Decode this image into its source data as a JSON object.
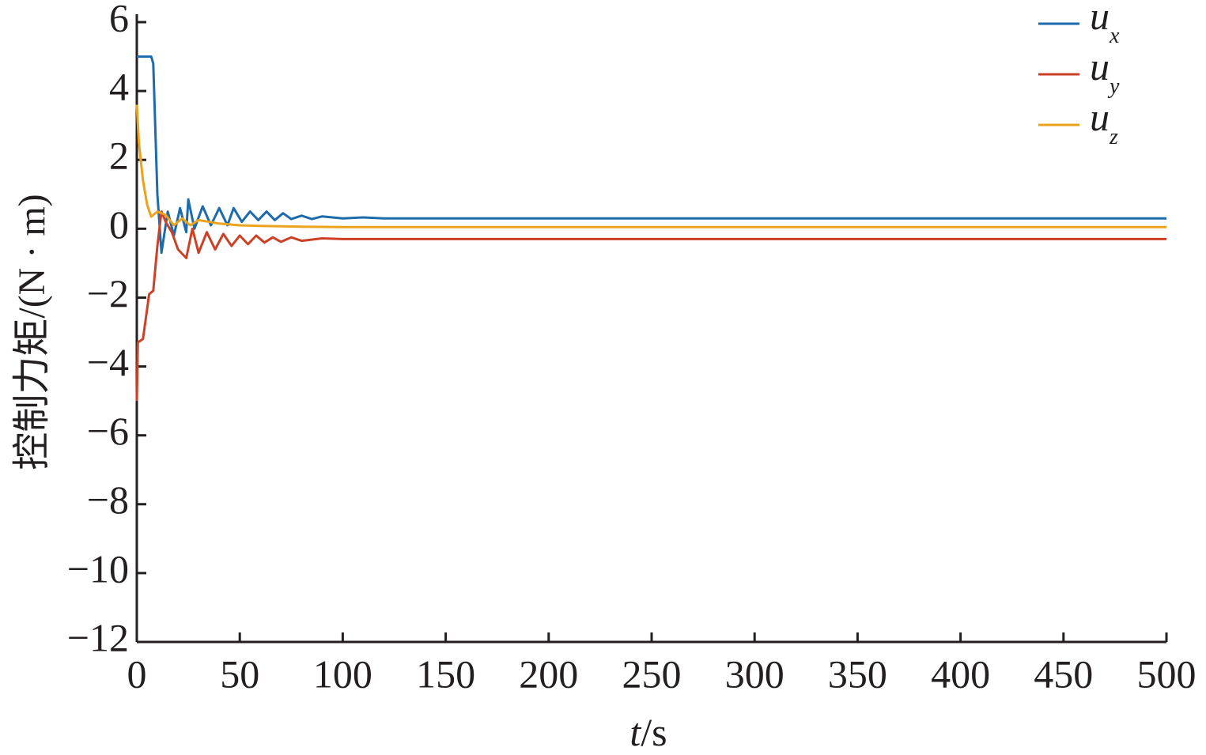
{
  "chart_data": {
    "type": "line",
    "y_label": "控制力矩/(N · m)",
    "x_label": "t/s",
    "xlim": [
      0,
      500
    ],
    "xticks": [
      0,
      50,
      100,
      150,
      200,
      250,
      300,
      350,
      400,
      450,
      500
    ],
    "ylim": [
      -12,
      6
    ],
    "yticks": [
      {
        "value": -12,
        "label": "−12"
      },
      {
        "value": -10,
        "label": "−10"
      },
      {
        "value": -8,
        "label": "−8"
      },
      {
        "value": -6,
        "label": "−6"
      },
      {
        "value": -4,
        "label": "−4"
      },
      {
        "value": -2,
        "label": "−2"
      },
      0,
      2,
      4,
      6
    ],
    "legend": "upper-right",
    "series": [
      {
        "name": "ux",
        "color": "#1d6bab",
        "x": [
          0,
          7,
          8,
          10,
          12,
          15,
          18,
          21,
          24,
          25,
          28,
          32,
          36,
          40,
          44,
          47,
          51,
          55,
          59,
          63,
          67,
          71,
          75,
          80,
          85,
          90,
          100,
          110,
          120,
          500
        ],
        "values": [
          5,
          5,
          4.8,
          1,
          -0.7,
          0.5,
          -0.2,
          0.6,
          -0.1,
          0.85,
          0.0,
          0.65,
          0.1,
          0.6,
          0.1,
          0.6,
          0.2,
          0.5,
          0.25,
          0.5,
          0.25,
          0.45,
          0.28,
          0.38,
          0.28,
          0.36,
          0.3,
          0.33,
          0.3,
          0.3
        ]
      },
      {
        "name": "uy",
        "color": "#cc4125",
        "x": [
          0,
          0.5,
          3,
          6,
          8,
          10,
          12,
          14,
          17,
          20,
          24,
          27,
          30,
          34,
          38,
          42,
          46,
          50,
          54,
          58,
          62,
          66,
          70,
          75,
          80,
          90,
          100,
          500
        ],
        "values": [
          -5,
          -3.3,
          -3.2,
          -1.9,
          -1.8,
          -0.5,
          0.5,
          0.2,
          -0.1,
          -0.6,
          -0.85,
          0,
          -0.7,
          -0.1,
          -0.6,
          -0.15,
          -0.5,
          -0.2,
          -0.45,
          -0.2,
          -0.4,
          -0.25,
          -0.38,
          -0.25,
          -0.35,
          -0.28,
          -0.3,
          -0.3
        ]
      },
      {
        "name": "uz",
        "color": "#eda21c",
        "x": [
          0,
          1,
          3,
          5,
          7,
          10,
          14,
          18,
          22,
          26,
          30,
          40,
          50,
          60,
          80,
          100,
          500
        ],
        "values": [
          3.6,
          2.5,
          1.4,
          0.7,
          0.35,
          0.5,
          0.4,
          0.1,
          0.3,
          0.1,
          0.25,
          0.15,
          0.1,
          0.08,
          0.06,
          0.05,
          0.05
        ]
      }
    ]
  }
}
